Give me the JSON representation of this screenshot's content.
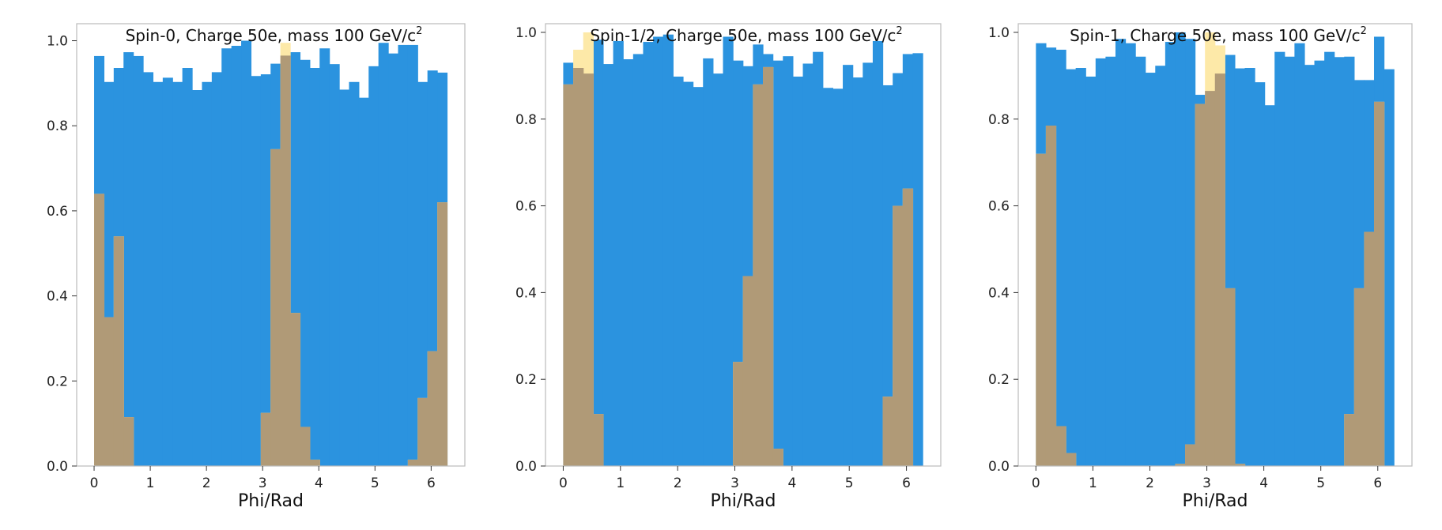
{
  "colors": {
    "blue": "#2b93df",
    "overlay": "#b09a77",
    "yellow": "#fde9a8",
    "frame": "#bbbbbb"
  },
  "chart_data": [
    {
      "type": "bar",
      "title": "Spin-0, Charge 50e, mass 100 GeV/c",
      "title_sup": "2",
      "xlabel": "Phi/Rad",
      "ylabel": "",
      "xlim": [
        -0.31,
        6.6
      ],
      "ylim": [
        0,
        1.04
      ],
      "xticks": [
        "0",
        "1",
        "2",
        "3",
        "4",
        "5",
        "6"
      ],
      "yticks": [
        "0.0",
        "0.2",
        "0.4",
        "0.6",
        "0.8",
        "1.0"
      ],
      "bin_edges": [
        0,
        6.2832
      ],
      "series": [
        {
          "color": "#2b93df",
          "values": [
            0.964,
            0.903,
            0.936,
            0.973,
            0.964,
            0.926,
            0.903,
            0.913,
            0.903,
            0.936,
            0.884,
            0.903,
            0.926,
            0.982,
            0.988,
            1.0,
            0.917,
            0.921,
            0.946,
            0.875,
            0.973,
            0.955,
            0.936,
            0.982,
            0.945,
            0.885,
            0.903,
            0.866,
            0.94,
            0.995,
            0.97,
            0.99,
            0.99,
            0.903,
            0.93,
            0.925
          ]
        },
        {
          "color": "#fde9a8",
          "values": [
            0.64,
            0.35,
            0.54,
            0.115,
            0,
            0,
            0,
            0,
            0,
            0,
            0,
            0,
            0,
            0,
            0,
            0,
            0,
            0.125,
            0.745,
            0.995,
            0.36,
            0.092,
            0.015,
            0,
            0,
            0,
            0,
            0,
            0,
            0,
            0,
            0,
            0.015,
            0.16,
            0.27,
            0.62
          ]
        },
        {
          "color": "#b09a77",
          "values": [
            0.64,
            0.35,
            0.54,
            0.115,
            0,
            0,
            0,
            0,
            0,
            0,
            0,
            0,
            0,
            0,
            0,
            0,
            0,
            0.125,
            0.745,
            0.965,
            0.36,
            0.092,
            0.015,
            0,
            0,
            0,
            0,
            0,
            0,
            0,
            0,
            0,
            0.015,
            0.16,
            0.27,
            0.62
          ]
        }
      ]
    },
    {
      "type": "bar",
      "title": "Spin-1/2, Charge 50e, mass 100 GeV/c",
      "title_sup": "2",
      "xlabel": "Phi/Rad",
      "ylabel": "",
      "xlim": [
        -0.31,
        6.6
      ],
      "ylim": [
        0,
        1.02
      ],
      "xticks": [
        "0",
        "1",
        "2",
        "3",
        "4",
        "5",
        "6"
      ],
      "yticks": [
        "0.0",
        "0.2",
        "0.4",
        "0.6",
        "0.8",
        "1.0"
      ],
      "bin_edges": [
        0,
        6.2832
      ],
      "series": [
        {
          "color": "#2b93df",
          "values": [
            0.93,
            0.915,
            0.955,
            0.983,
            0.927,
            0.98,
            0.938,
            0.95,
            0.978,
            0.99,
            0.995,
            0.898,
            0.886,
            0.874,
            0.94,
            0.905,
            0.99,
            0.935,
            0.922,
            0.972,
            0.95,
            0.935,
            0.945,
            0.898,
            0.928,
            0.955,
            0.872,
            0.87,
            0.925,
            0.896,
            0.93,
            0.98,
            0.878,
            0.906,
            0.95,
            0.952
          ]
        },
        {
          "color": "#fde9a8",
          "values": [
            0.88,
            0.96,
            1.0,
            0.12,
            0,
            0,
            0,
            0,
            0,
            0,
            0,
            0,
            0,
            0,
            0,
            0,
            0,
            0.24,
            0.438,
            0.88,
            0.92,
            0.04,
            0,
            0,
            0,
            0,
            0,
            0,
            0,
            0,
            0,
            0,
            0.16,
            0.6,
            0.64,
            0
          ]
        },
        {
          "color": "#b09a77",
          "values": [
            0.88,
            0.918,
            0.905,
            0.12,
            0,
            0,
            0,
            0,
            0,
            0,
            0,
            0,
            0,
            0,
            0,
            0,
            0,
            0.24,
            0.438,
            0.88,
            0.92,
            0.04,
            0,
            0,
            0,
            0,
            0,
            0,
            0,
            0,
            0,
            0,
            0.16,
            0.6,
            0.64,
            0
          ]
        }
      ]
    },
    {
      "type": "bar",
      "title": "Spin-1, Charge 50e, mass 100 GeV/c",
      "title_sup": "2",
      "xlabel": "Phi/Rad",
      "ylabel": "",
      "xlim": [
        -0.31,
        6.6
      ],
      "ylim": [
        0,
        1.02
      ],
      "xticks": [
        "0",
        "1",
        "2",
        "3",
        "4",
        "5",
        "6"
      ],
      "yticks": [
        "0.0",
        "0.2",
        "0.4",
        "0.6",
        "0.8",
        "1.0"
      ],
      "bin_edges": [
        0,
        6.2832
      ],
      "series": [
        {
          "color": "#2b93df",
          "values": [
            0.975,
            0.965,
            0.96,
            0.915,
            0.918,
            0.898,
            0.94,
            0.944,
            0.985,
            0.975,
            0.944,
            0.907,
            0.923,
            0.978,
            1.0,
            0.985,
            0.856,
            0.8,
            0.907,
            0.948,
            0.917,
            0.918,
            0.885,
            0.832,
            0.955,
            0.944,
            0.975,
            0.925,
            0.935,
            0.955,
            0.943,
            0.944,
            0.89,
            0.89,
            0.99,
            0.915
          ]
        },
        {
          "color": "#fde9a8",
          "values": [
            0.72,
            0.785,
            0.092,
            0.03,
            0,
            0,
            0,
            0,
            0,
            0,
            0,
            0,
            0,
            0,
            0.005,
            0.05,
            0.835,
            1.0,
            0.97,
            0.41,
            0.005,
            0,
            0,
            0,
            0,
            0,
            0,
            0,
            0,
            0,
            0,
            0.12,
            0.41,
            0.54,
            0.84,
            0
          ]
        },
        {
          "color": "#b09a77",
          "values": [
            0.72,
            0.785,
            0.092,
            0.03,
            0,
            0,
            0,
            0,
            0,
            0,
            0,
            0,
            0,
            0,
            0.005,
            0.05,
            0.835,
            0.865,
            0.905,
            0.41,
            0.005,
            0,
            0,
            0,
            0,
            0,
            0,
            0,
            0,
            0,
            0,
            0.12,
            0.41,
            0.54,
            0.84,
            0
          ]
        }
      ]
    }
  ]
}
